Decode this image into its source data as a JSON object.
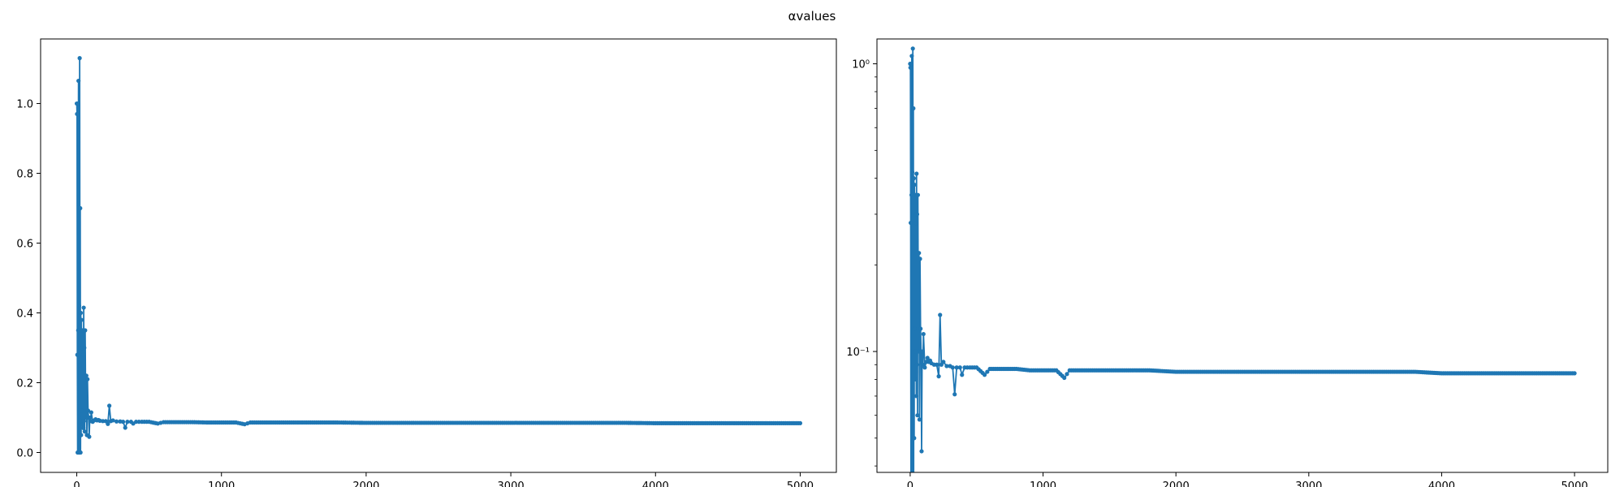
{
  "figure": {
    "suptitle": "αvalues"
  },
  "chart_data": [
    {
      "type": "line",
      "yscale": "linear",
      "grid": false,
      "xlim": [
        -250,
        5250
      ],
      "ylim": [
        -0.057,
        1.185
      ],
      "xticks": [
        0,
        1000,
        2000,
        3000,
        4000,
        5000
      ],
      "xtick_labels": [
        "0",
        "1000",
        "2000",
        "3000",
        "4000",
        "5000"
      ],
      "yticks": [
        0.0,
        0.2,
        0.4,
        0.6,
        0.8,
        1.0
      ],
      "ytick_labels": [
        "0.0",
        "0.2",
        "0.4",
        "0.6",
        "0.8",
        "1.0"
      ],
      "series": [
        {
          "color": "#1f77b4",
          "marker": "circle",
          "points": [
            [
              0,
              1.0
            ],
            [
              2,
              0.97
            ],
            [
              4,
              0.28
            ],
            [
              6,
              0.0
            ],
            [
              8,
              1.0
            ],
            [
              10,
              0.35
            ],
            [
              12,
              1.065
            ],
            [
              14,
              0.0
            ],
            [
              16,
              0.42
            ],
            [
              18,
              0.0
            ],
            [
              20,
              1.13
            ],
            [
              22,
              0.25
            ],
            [
              24,
              0.7
            ],
            [
              26,
              0.0
            ],
            [
              28,
              0.4
            ],
            [
              30,
              0.05
            ],
            [
              32,
              0.38
            ],
            [
              34,
              0.12
            ],
            [
              36,
              0.3
            ],
            [
              38,
              0.08
            ],
            [
              40,
              0.35
            ],
            [
              42,
              0.1
            ],
            [
              44,
              0.28
            ],
            [
              46,
              0.07
            ],
            [
              48,
              0.415
            ],
            [
              50,
              0.09
            ],
            [
              52,
              0.3
            ],
            [
              55,
              0.06
            ],
            [
              58,
              0.35
            ],
            [
              62,
              0.1
            ],
            [
              66,
              0.22
            ],
            [
              70,
              0.05
            ],
            [
              74,
              0.21
            ],
            [
              78,
              0.12
            ],
            [
              82,
              0.1
            ],
            [
              86,
              0.045
            ],
            [
              90,
              0.1
            ],
            [
              95,
              0.09
            ],
            [
              100,
              0.115
            ],
            [
              110,
              0.088
            ],
            [
              120,
              0.092
            ],
            [
              130,
              0.095
            ],
            [
              140,
              0.092
            ],
            [
              150,
              0.093
            ],
            [
              160,
              0.091
            ],
            [
              180,
              0.09
            ],
            [
              200,
              0.09
            ],
            [
              215,
              0.082
            ],
            [
              225,
              0.134
            ],
            [
              235,
              0.09
            ],
            [
              250,
              0.092
            ],
            [
              275,
              0.089
            ],
            [
              300,
              0.089
            ],
            [
              320,
              0.088
            ],
            [
              335,
              0.071
            ],
            [
              350,
              0.088
            ],
            [
              375,
              0.088
            ],
            [
              390,
              0.083
            ],
            [
              410,
              0.088
            ],
            [
              450,
              0.088
            ],
            [
              500,
              0.088
            ],
            [
              560,
              0.083
            ],
            [
              600,
              0.087
            ],
            [
              700,
              0.087
            ],
            [
              800,
              0.087
            ],
            [
              900,
              0.086
            ],
            [
              1000,
              0.086
            ],
            [
              1100,
              0.086
            ],
            [
              1160,
              0.081
            ],
            [
              1200,
              0.086
            ],
            [
              1400,
              0.086
            ],
            [
              1600,
              0.086
            ],
            [
              1800,
              0.086
            ],
            [
              2000,
              0.085
            ],
            [
              2200,
              0.085
            ],
            [
              2400,
              0.085
            ],
            [
              2600,
              0.085
            ],
            [
              2800,
              0.085
            ],
            [
              3000,
              0.085
            ],
            [
              3200,
              0.085
            ],
            [
              3400,
              0.085
            ],
            [
              3600,
              0.085
            ],
            [
              3800,
              0.085
            ],
            [
              4000,
              0.084
            ],
            [
              4200,
              0.084
            ],
            [
              4400,
              0.084
            ],
            [
              4600,
              0.084
            ],
            [
              4800,
              0.084
            ],
            [
              5000,
              0.084
            ]
          ]
        }
      ]
    },
    {
      "type": "line",
      "yscale": "log",
      "grid": false,
      "xlim": [
        -250,
        5250
      ],
      "ylim": [
        0.038,
        1.22
      ],
      "xticks": [
        0,
        1000,
        2000,
        3000,
        4000,
        5000
      ],
      "xtick_labels": [
        "0",
        "1000",
        "2000",
        "3000",
        "4000",
        "5000"
      ],
      "yticks_major": [
        0.1,
        1.0
      ],
      "ytick_labels": [
        "10⁻¹",
        "10⁰"
      ],
      "yticks_minor": [
        0.04,
        0.05,
        0.06,
        0.07,
        0.08,
        0.09,
        0.2,
        0.3,
        0.4,
        0.5,
        0.6,
        0.7,
        0.8,
        0.9
      ],
      "series": [
        {
          "color": "#1f77b4",
          "marker": "circle",
          "points": [
            [
              0,
              1.0
            ],
            [
              2,
              0.97
            ],
            [
              4,
              0.28
            ],
            [
              6,
              0.03
            ],
            [
              8,
              1.0
            ],
            [
              10,
              0.35
            ],
            [
              12,
              1.065
            ],
            [
              14,
              0.03
            ],
            [
              16,
              0.42
            ],
            [
              18,
              0.03
            ],
            [
              20,
              1.13
            ],
            [
              22,
              0.25
            ],
            [
              24,
              0.7
            ],
            [
              26,
              0.03
            ],
            [
              28,
              0.4
            ],
            [
              30,
              0.05
            ],
            [
              32,
              0.38
            ],
            [
              34,
              0.12
            ],
            [
              36,
              0.3
            ],
            [
              38,
              0.08
            ],
            [
              40,
              0.35
            ],
            [
              42,
              0.1
            ],
            [
              44,
              0.28
            ],
            [
              46,
              0.07
            ],
            [
              48,
              0.415
            ],
            [
              50,
              0.09
            ],
            [
              52,
              0.3
            ],
            [
              55,
              0.06
            ],
            [
              58,
              0.35
            ],
            [
              62,
              0.1
            ],
            [
              66,
              0.22
            ],
            [
              70,
              0.058
            ],
            [
              74,
              0.21
            ],
            [
              78,
              0.12
            ],
            [
              82,
              0.1
            ],
            [
              86,
              0.045
            ],
            [
              90,
              0.1
            ],
            [
              95,
              0.09
            ],
            [
              100,
              0.115
            ],
            [
              110,
              0.088
            ],
            [
              120,
              0.092
            ],
            [
              130,
              0.095
            ],
            [
              140,
              0.092
            ],
            [
              150,
              0.093
            ],
            [
              160,
              0.091
            ],
            [
              180,
              0.09
            ],
            [
              200,
              0.09
            ],
            [
              215,
              0.082
            ],
            [
              225,
              0.134
            ],
            [
              235,
              0.09
            ],
            [
              250,
              0.092
            ],
            [
              275,
              0.089
            ],
            [
              300,
              0.089
            ],
            [
              320,
              0.088
            ],
            [
              335,
              0.071
            ],
            [
              350,
              0.088
            ],
            [
              375,
              0.088
            ],
            [
              390,
              0.083
            ],
            [
              410,
              0.088
            ],
            [
              450,
              0.088
            ],
            [
              500,
              0.088
            ],
            [
              560,
              0.083
            ],
            [
              600,
              0.087
            ],
            [
              700,
              0.087
            ],
            [
              800,
              0.087
            ],
            [
              900,
              0.086
            ],
            [
              1000,
              0.086
            ],
            [
              1100,
              0.086
            ],
            [
              1160,
              0.081
            ],
            [
              1200,
              0.086
            ],
            [
              1400,
              0.086
            ],
            [
              1600,
              0.086
            ],
            [
              1800,
              0.086
            ],
            [
              2000,
              0.085
            ],
            [
              2200,
              0.085
            ],
            [
              2400,
              0.085
            ],
            [
              2600,
              0.085
            ],
            [
              2800,
              0.085
            ],
            [
              3000,
              0.085
            ],
            [
              3200,
              0.085
            ],
            [
              3400,
              0.085
            ],
            [
              3600,
              0.085
            ],
            [
              3800,
              0.085
            ],
            [
              4000,
              0.084
            ],
            [
              4200,
              0.084
            ],
            [
              4400,
              0.084
            ],
            [
              4600,
              0.084
            ],
            [
              4800,
              0.084
            ],
            [
              5000,
              0.084
            ]
          ]
        }
      ]
    }
  ]
}
